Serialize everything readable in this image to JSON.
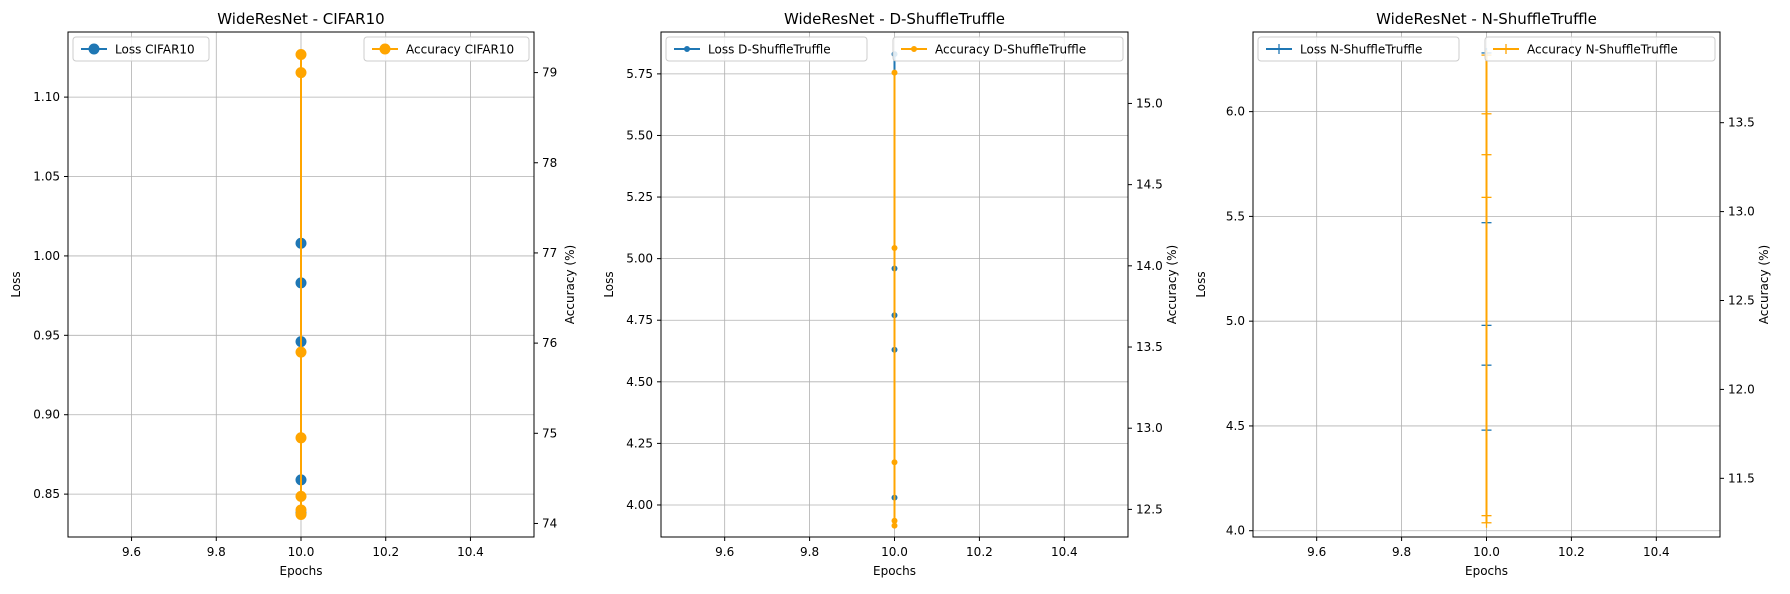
{
  "colors": {
    "loss": "#1f77b4",
    "accuracy": "#ffa500",
    "grid": "#b0b0b0"
  },
  "chart_data": [
    {
      "type": "line",
      "title": "WideResNet - CIFAR10",
      "xlabel": "Epochs",
      "ylabel": "Loss",
      "y2label": "Accuracy (%)",
      "xlim": [
        9.45,
        10.55
      ],
      "xticks": [
        9.6,
        9.8,
        10.0,
        10.2,
        10.4
      ],
      "xtick_labels": [
        "9.6",
        "9.8",
        "10.0",
        "10.2",
        "10.4"
      ],
      "ylim": [
        0.823,
        1.141
      ],
      "yticks": [
        0.85,
        0.9,
        0.95,
        1.0,
        1.05,
        1.1
      ],
      "ytick_labels": [
        "0.85",
        "0.90",
        "0.95",
        "1.00",
        "1.05",
        "1.10"
      ],
      "y2lim": [
        73.85,
        79.45
      ],
      "y2ticks": [
        74,
        75,
        76,
        77,
        78,
        79
      ],
      "y2tick_labels": [
        "74",
        "75",
        "76",
        "77",
        "78",
        "79"
      ],
      "grid": true,
      "marker": "circle",
      "series": [
        {
          "name": "Loss CIFAR10",
          "axis": "left",
          "color": "#1f77b4",
          "x": [
            10,
            10,
            10,
            10,
            10
          ],
          "y": [
            1.008,
            0.983,
            0.946,
            0.859,
            0.838
          ]
        },
        {
          "name": "Accuracy CIFAR10",
          "axis": "right",
          "color": "#ffa500",
          "x": [
            10,
            10,
            10,
            10,
            10,
            10,
            10
          ],
          "y": [
            79.2,
            79.0,
            75.9,
            74.95,
            74.3,
            74.15,
            74.1
          ]
        }
      ],
      "legend": [
        {
          "label": "Loss CIFAR10",
          "placement": "upper-left"
        },
        {
          "label": "Accuracy CIFAR10",
          "placement": "upper-right"
        }
      ]
    },
    {
      "type": "line",
      "title": "WideResNet - D-ShuffleTruffle",
      "xlabel": "Epochs",
      "ylabel": "Loss",
      "y2label": "Accuracy (%)",
      "xlim": [
        9.45,
        10.55
      ],
      "xticks": [
        9.6,
        9.8,
        10.0,
        10.2,
        10.4
      ],
      "xtick_labels": [
        "9.6",
        "9.8",
        "10.0",
        "10.2",
        "10.4"
      ],
      "ylim": [
        3.87,
        5.92
      ],
      "yticks": [
        4.0,
        4.25,
        4.5,
        4.75,
        5.0,
        5.25,
        5.5,
        5.75
      ],
      "ytick_labels": [
        "4.00",
        "4.25",
        "4.50",
        "4.75",
        "5.00",
        "5.25",
        "5.50",
        "5.75"
      ],
      "y2lim": [
        12.33,
        15.44
      ],
      "y2ticks": [
        12.5,
        13.0,
        13.5,
        14.0,
        14.5,
        15.0
      ],
      "y2tick_labels": [
        "12.5",
        "13.0",
        "13.5",
        "14.0",
        "14.5",
        "15.0"
      ],
      "grid": true,
      "marker": "dot",
      "series": [
        {
          "name": "Loss D-ShuffleTruffle",
          "axis": "left",
          "color": "#1f77b4",
          "x": [
            10,
            10,
            10,
            10,
            10
          ],
          "y": [
            5.83,
            4.96,
            4.77,
            4.63,
            4.03
          ]
        },
        {
          "name": "Accuracy D-ShuffleTruffle",
          "axis": "right",
          "color": "#ffa500",
          "x": [
            10,
            10,
            10,
            10,
            10
          ],
          "y": [
            15.19,
            14.11,
            12.79,
            12.43,
            12.4
          ]
        }
      ],
      "legend": [
        {
          "label": "Loss D-ShuffleTruffle",
          "placement": "upper-left"
        },
        {
          "label": "Accuracy D-ShuffleTruffle",
          "placement": "upper-right"
        }
      ]
    },
    {
      "type": "line",
      "title": "WideResNet - N-ShuffleTruffle",
      "xlabel": "Epochs",
      "ylabel": "Loss",
      "y2label": "Accuracy (%)",
      "xlim": [
        9.45,
        10.55
      ],
      "xticks": [
        9.6,
        9.8,
        10.0,
        10.2,
        10.4
      ],
      "xtick_labels": [
        "9.6",
        "9.8",
        "10.0",
        "10.2",
        "10.4"
      ],
      "ylim": [
        3.97,
        6.38
      ],
      "yticks": [
        4.0,
        4.5,
        5.0,
        5.5,
        6.0
      ],
      "ytick_labels": [
        "4.0",
        "4.5",
        "5.0",
        "5.5",
        "6.0"
      ],
      "y2lim": [
        11.17,
        14.01
      ],
      "y2ticks": [
        11.5,
        12.0,
        12.5,
        13.0,
        13.5
      ],
      "y2tick_labels": [
        "11.5",
        "12.0",
        "12.5",
        "13.0",
        "13.5"
      ],
      "grid": true,
      "marker": "plus",
      "series": [
        {
          "name": "Loss N-ShuffleTruffle",
          "axis": "left",
          "color": "#1f77b4",
          "x": [
            10,
            10,
            10,
            10,
            10
          ],
          "y": [
            6.28,
            5.47,
            4.98,
            4.79,
            4.48
          ]
        },
        {
          "name": "Accuracy N-ShuffleTruffle",
          "axis": "right",
          "color": "#ffa500",
          "x": [
            10,
            10,
            10,
            10,
            10,
            10
          ],
          "y": [
            13.88,
            13.55,
            13.32,
            13.08,
            11.29,
            11.25
          ]
        }
      ],
      "legend": [
        {
          "label": "Loss N-ShuffleTruffle",
          "placement": "upper-left"
        },
        {
          "label": "Accuracy N-ShuffleTruffle",
          "placement": "upper-right"
        }
      ]
    }
  ]
}
